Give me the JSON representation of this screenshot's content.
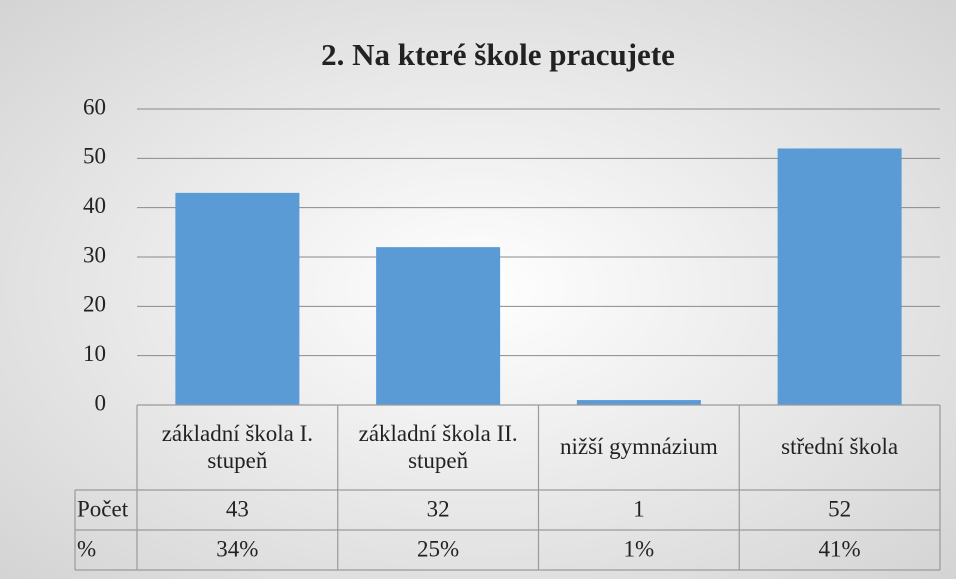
{
  "chart_data": {
    "type": "bar",
    "title": "2. Na které škole pracujete",
    "categories": [
      "základní škola I. stupeň",
      "základní škola II. stupeň",
      "nižší gymnázium",
      "střední škola"
    ],
    "series": [
      {
        "name": "Počet",
        "color": "#5b9bd5",
        "values": [
          43,
          32,
          1,
          52
        ]
      }
    ],
    "percent_row": {
      "name": "%",
      "values": [
        34,
        25,
        1,
        41
      ],
      "value_labels": [
        "34%",
        "25%",
        "1%",
        "41%"
      ]
    },
    "ylim": [
      0,
      60
    ],
    "yticks": [
      0,
      10,
      20,
      30,
      40,
      50,
      60
    ],
    "grid": true
  }
}
